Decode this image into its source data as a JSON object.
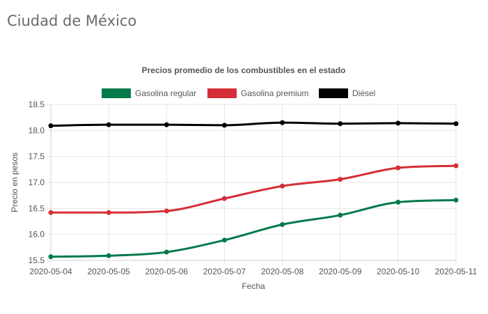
{
  "page": {
    "title": "Ciudad de México"
  },
  "chart_data": {
    "type": "line",
    "title": "Precios promedio de los combustibles en el estado",
    "xlabel": "Fecha",
    "ylabel": "Precio en pesos",
    "categories": [
      "2020-05-04",
      "2020-05-05",
      "2020-05-06",
      "2020-05-07",
      "2020-05-08",
      "2020-05-09",
      "2020-05-10",
      "2020-05-11"
    ],
    "ylim": [
      15.5,
      18.5
    ],
    "yticks": [
      "15.5",
      "16.0",
      "16.5",
      "17.0",
      "17.5",
      "18.0",
      "18.5"
    ],
    "grid": true,
    "legend_position": "top",
    "series": [
      {
        "name": "Gasolina regular",
        "color": "#047a4b",
        "values": [
          15.57,
          15.59,
          15.66,
          15.89,
          16.19,
          16.37,
          16.62,
          16.66
        ]
      },
      {
        "name": "Gasolina premium",
        "color": "#d62e36",
        "values": [
          16.42,
          16.42,
          16.45,
          16.69,
          16.93,
          17.06,
          17.28,
          17.32
        ]
      },
      {
        "name": "Diésel",
        "color": "#000000",
        "values": [
          18.09,
          18.11,
          18.11,
          18.1,
          18.15,
          18.13,
          18.14,
          18.13
        ]
      }
    ]
  }
}
